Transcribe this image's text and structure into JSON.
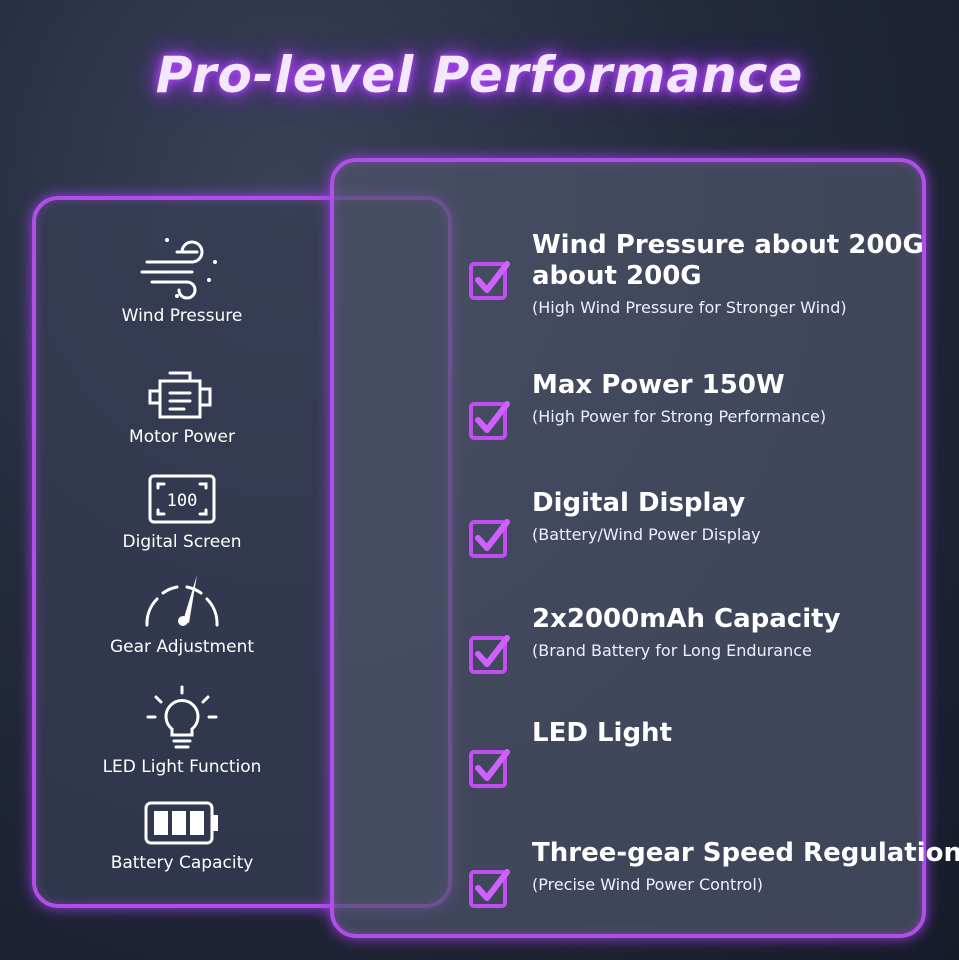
{
  "header": {
    "title": "Pro-level Performance"
  },
  "features": [
    {
      "label": "Wind Pressure"
    },
    {
      "label": "Motor Power"
    },
    {
      "label": "Digital Screen"
    },
    {
      "label": "Gear Adjustment"
    },
    {
      "label": "LED Light Function"
    },
    {
      "label": "Battery Capacity"
    }
  ],
  "items": [
    {
      "title": [
        "Wind Pressure about 200G",
        "about 200G"
      ],
      "subtitle": "(High Wind Pressure for Stronger Wind)"
    },
    {
      "title": [
        "Max Power 150W"
      ],
      "subtitle": "(High Power for Strong Performance)"
    },
    {
      "title": [
        "Digital Display"
      ],
      "subtitle": "(Battery/Wind Power Display"
    },
    {
      "title": [
        "2x2000mAh Capacity"
      ],
      "subtitle": "(Brand Battery for Long Endurance"
    },
    {
      "title": [
        "LED Light"
      ]
    },
    {
      "title": [
        "Three-gear Speed Regulation"
      ],
      "subtitle": "(Precise Wind Power Control)"
    }
  ],
  "screen_text": "100"
}
